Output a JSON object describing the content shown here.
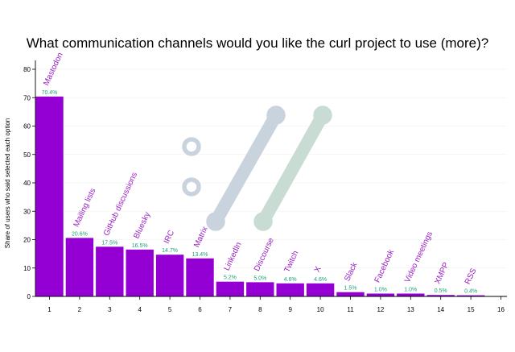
{
  "chart_data": {
    "type": "bar",
    "title": "What communication channels would you like the curl project to use (more)?",
    "ylabel": "Share of users who said selected each option",
    "xlabel": "",
    "ylim": [
      0,
      80
    ],
    "xlim": [
      0,
      16
    ],
    "yticks": [
      0,
      10,
      20,
      30,
      40,
      50,
      60,
      70,
      80
    ],
    "xticks": [
      1,
      2,
      3,
      4,
      5,
      6,
      7,
      8,
      9,
      10,
      11,
      12,
      13,
      14,
      15,
      16
    ],
    "grid": true,
    "x": [
      1,
      2,
      3,
      4,
      5,
      6,
      7,
      8,
      9,
      10,
      11,
      12,
      13,
      14,
      15
    ],
    "categories": [
      "Mastodon",
      "Mailing lists",
      "GitHub discussions",
      "Bluesky",
      "IRC",
      "Matrix",
      "LinkedIn",
      "Discourse",
      "Twitch",
      "X",
      "Slack",
      "Facebook",
      "Video meetings",
      "XMPP",
      "RSS"
    ],
    "values": [
      70.4,
      20.6,
      17.5,
      16.5,
      14.7,
      13.4,
      5.2,
      5.0,
      4.6,
      4.6,
      1.5,
      1.0,
      1.0,
      0.5,
      0.4
    ],
    "value_labels": [
      "70.4%",
      "20.6%",
      "17.5%",
      "16.5%",
      "14.7%",
      "13.4%",
      "5.2%",
      "5.0%",
      "4.6%",
      "4.6%",
      "1.5%",
      "1.0%",
      "1.0%",
      "0.5%",
      "0.4%"
    ],
    "colors": {
      "bar": "#9400d3",
      "value_label": "#1aa37a",
      "category_label": "#9a1fc4",
      "watermark_blue": "#c9d3de",
      "watermark_green": "#c9dcd4"
    }
  }
}
